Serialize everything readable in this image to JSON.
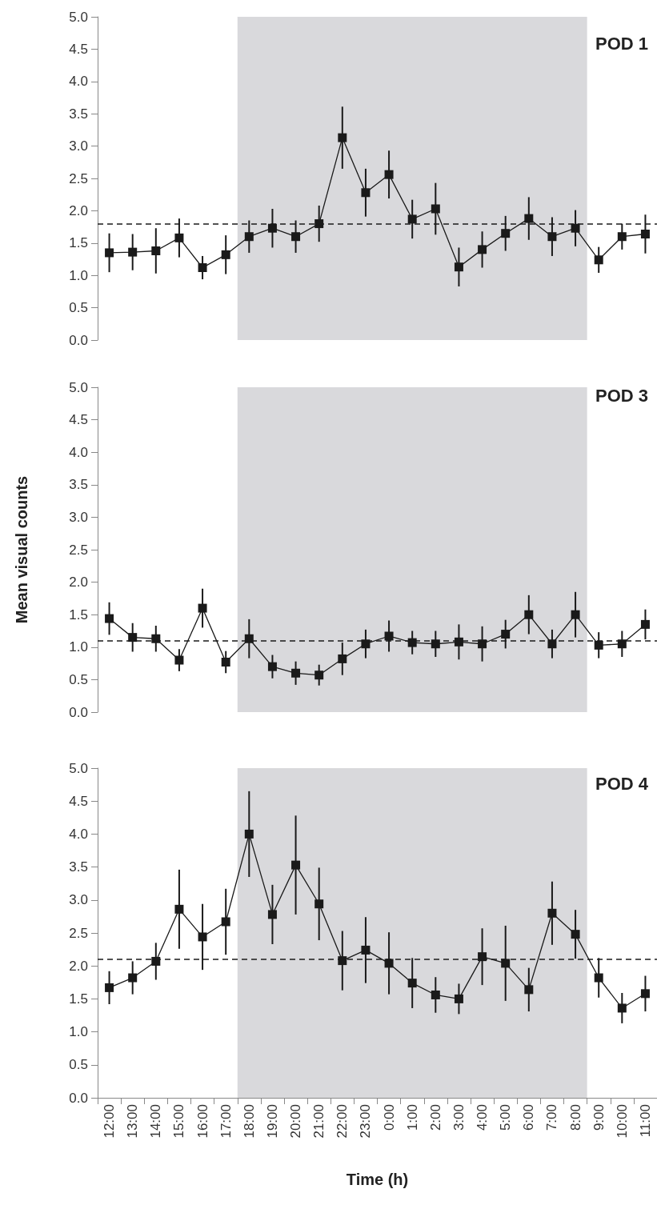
{
  "chart_data": [
    {
      "type": "line",
      "title": "POD 1",
      "categories": [
        "12:00",
        "13:00",
        "14:00",
        "15:00",
        "16:00",
        "17:00",
        "18:00",
        "19:00",
        "20:00",
        "21:00",
        "22:00",
        "23:00",
        "0:00",
        "1:00",
        "2:00",
        "3:00",
        "4:00",
        "5:00",
        "6:00",
        "7:00",
        "8:00",
        "9:00",
        "10:00",
        "11:00"
      ],
      "series": [
        {
          "color": "#1a1a1a",
          "values": [
            1.35,
            1.36,
            1.38,
            1.58,
            1.12,
            1.32,
            1.6,
            1.73,
            1.6,
            1.8,
            3.13,
            2.28,
            2.56,
            1.87,
            2.03,
            1.13,
            1.4,
            1.65,
            1.88,
            1.6,
            1.73,
            1.24,
            1.6,
            1.64
          ],
          "errors": [
            0.3,
            0.28,
            0.35,
            0.3,
            0.18,
            0.3,
            0.25,
            0.3,
            0.25,
            0.28,
            0.48,
            0.37,
            0.37,
            0.3,
            0.4,
            0.3,
            0.28,
            0.27,
            0.33,
            0.3,
            0.28,
            0.2,
            0.2,
            0.3
          ]
        }
      ],
      "ylim": [
        0,
        5
      ],
      "yticks": [
        {
          "value": 0,
          "label": "0.0"
        },
        0.5,
        {
          "value": 1,
          "label": "1.0"
        },
        1.5,
        {
          "value": 2,
          "label": "2.0"
        },
        2.5,
        {
          "value": 3,
          "label": "3.0"
        },
        3.5,
        {
          "value": 4,
          "label": "4.0"
        },
        4.5,
        {
          "value": 5,
          "label": "5.0"
        }
      ],
      "tick_labels": "y",
      "marker": "square",
      "grid": false,
      "ref_lines": [
        {
          "axis": "y",
          "value": 1.8,
          "line_style": "dashed",
          "color": "#1a1a1a"
        }
      ],
      "bands": [
        {
          "axis": "x",
          "from": "18:00",
          "to": "8:00",
          "color": "#d9d9dc"
        }
      ]
    },
    {
      "type": "line",
      "title": "POD 3",
      "ylabel": "Mean visual counts",
      "categories": [
        "12:00",
        "13:00",
        "14:00",
        "15:00",
        "16:00",
        "17:00",
        "18:00",
        "19:00",
        "20:00",
        "21:00",
        "22:00",
        "23:00",
        "0:00",
        "1:00",
        "2:00",
        "3:00",
        "4:00",
        "5:00",
        "6:00",
        "7:00",
        "8:00",
        "9:00",
        "10:00",
        "11:00"
      ],
      "series": [
        {
          "color": "#1a1a1a",
          "values": [
            1.44,
            1.15,
            1.13,
            0.8,
            1.6,
            0.77,
            1.13,
            0.7,
            0.6,
            0.57,
            0.82,
            1.05,
            1.17,
            1.07,
            1.05,
            1.08,
            1.05,
            1.2,
            1.5,
            1.05,
            1.5,
            1.03,
            1.05,
            1.35
          ],
          "errors": [
            0.25,
            0.22,
            0.2,
            0.17,
            0.3,
            0.17,
            0.3,
            0.18,
            0.18,
            0.16,
            0.25,
            0.22,
            0.24,
            0.18,
            0.2,
            0.27,
            0.27,
            0.22,
            0.3,
            0.22,
            0.35,
            0.2,
            0.2,
            0.23
          ]
        }
      ],
      "ylim": [
        0,
        5
      ],
      "yticks": [
        {
          "value": 0,
          "label": "0.0"
        },
        0.5,
        {
          "value": 1,
          "label": "1.0"
        },
        1.5,
        {
          "value": 2,
          "label": "2.0"
        },
        2.5,
        {
          "value": 3,
          "label": "3.0"
        },
        3.5,
        {
          "value": 4,
          "label": "4.0"
        },
        4.5,
        {
          "value": 5,
          "label": "5.0"
        }
      ],
      "tick_labels": "y",
      "marker": "square",
      "grid": false,
      "ref_lines": [
        {
          "axis": "y",
          "value": 1.1,
          "line_style": "dashed",
          "color": "#1a1a1a"
        }
      ],
      "bands": [
        {
          "axis": "x",
          "from": "18:00",
          "to": "8:00",
          "color": "#d9d9dc"
        }
      ]
    },
    {
      "type": "line",
      "title": "POD 4",
      "xlabel": "Time (h)",
      "categories": [
        "12:00",
        "13:00",
        "14:00",
        "15:00",
        "16:00",
        "17:00",
        "18:00",
        "19:00",
        "20:00",
        "21:00",
        "22:00",
        "23:00",
        "0:00",
        "1:00",
        "2:00",
        "3:00",
        "4:00",
        "5:00",
        "6:00",
        "7:00",
        "8:00",
        "9:00",
        "10:00",
        "11:00"
      ],
      "series": [
        {
          "color": "#1a1a1a",
          "values": [
            1.67,
            1.82,
            2.07,
            2.86,
            2.44,
            2.67,
            4.0,
            2.78,
            3.53,
            2.94,
            2.08,
            2.24,
            2.04,
            1.74,
            1.56,
            1.5,
            2.14,
            2.04,
            1.64,
            2.8,
            2.48,
            1.82,
            1.36,
            1.58
          ],
          "errors": [
            0.25,
            0.25,
            0.28,
            0.6,
            0.5,
            0.5,
            0.65,
            0.45,
            0.75,
            0.55,
            0.45,
            0.5,
            0.47,
            0.38,
            0.27,
            0.23,
            0.43,
            0.57,
            0.33,
            0.48,
            0.37,
            0.3,
            0.23,
            0.27
          ]
        }
      ],
      "ylim": [
        0,
        5
      ],
      "yticks": [
        {
          "value": 0,
          "label": "0.0"
        },
        0.5,
        {
          "value": 1,
          "label": "1.0"
        },
        1.5,
        {
          "value": 2,
          "label": "2.0"
        },
        2.5,
        {
          "value": 3,
          "label": "3.0"
        },
        3.5,
        {
          "value": 4,
          "label": "4.0"
        },
        4.5,
        {
          "value": 5,
          "label": "5.0"
        }
      ],
      "marker": "square",
      "grid": false,
      "ref_lines": [
        {
          "axis": "y",
          "value": 2.1,
          "line_style": "dashed",
          "color": "#1a1a1a"
        }
      ],
      "bands": [
        {
          "axis": "x",
          "from": "18:00",
          "to": "8:00",
          "color": "#d9d9dc"
        }
      ]
    }
  ]
}
